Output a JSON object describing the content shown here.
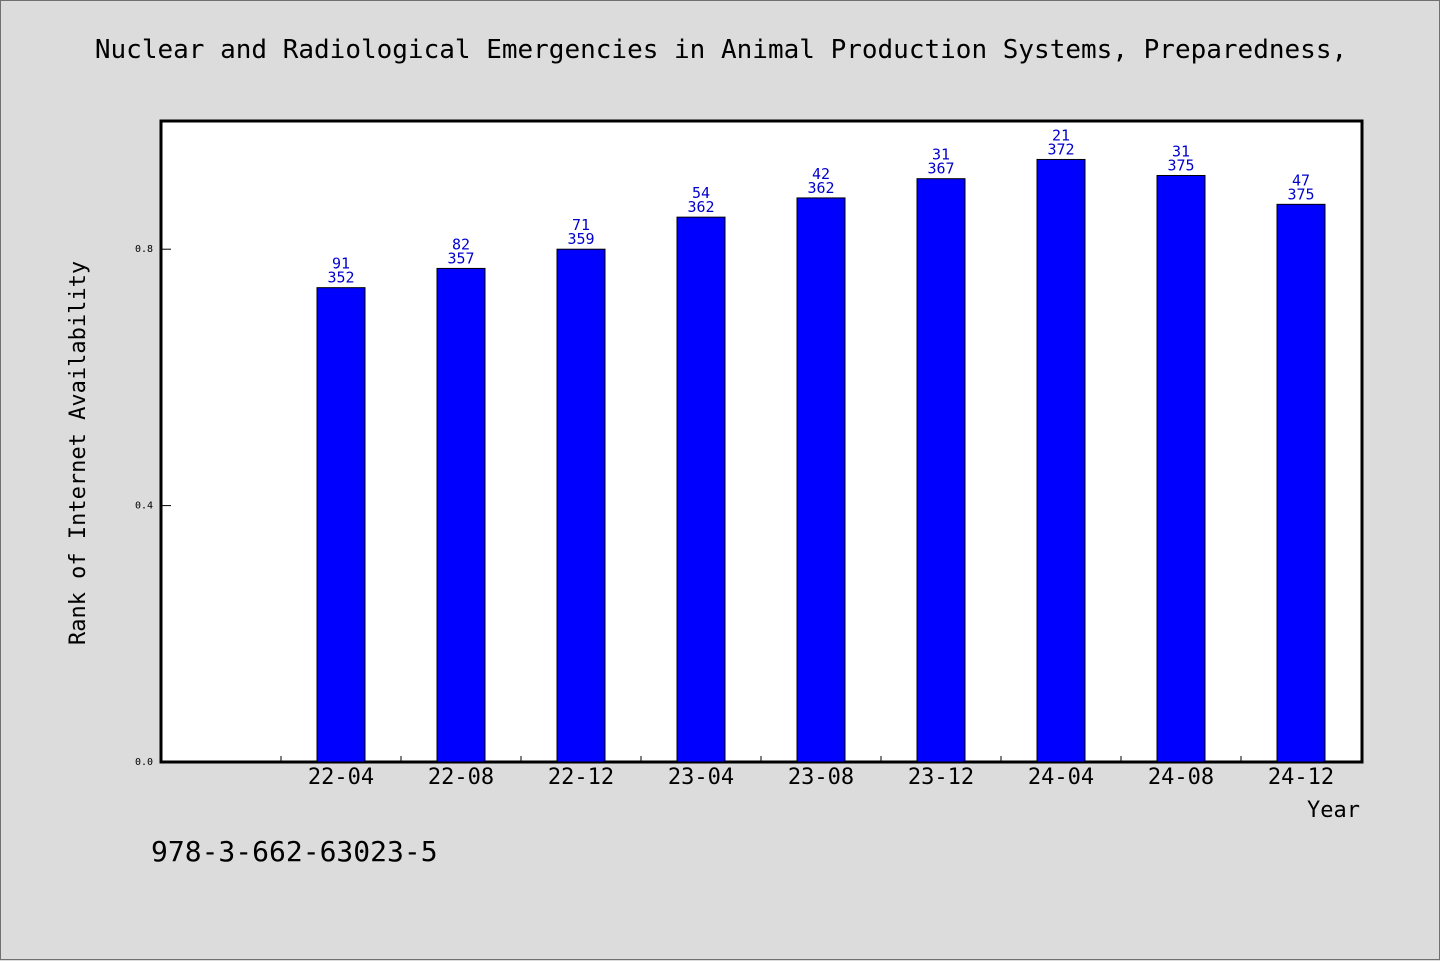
{
  "footer": {
    "isbn": "978-3-662-63023-5"
  },
  "chart_data": {
    "type": "bar",
    "title": "Nuclear and Radiological Emergencies in Animal Production Systems, Preparedness,",
    "xlabel": "Year",
    "ylabel": "Rank of Internet Availability",
    "ylim": [
      0,
      1.0
    ],
    "yticks": [
      "0.0",
      "0.4",
      "0.8"
    ],
    "categories": [
      "22-04",
      "22-08",
      "22-12",
      "23-04",
      "23-08",
      "23-12",
      "24-04",
      "24-08",
      "24-12"
    ],
    "series": [
      {
        "values": [
          0.74,
          0.77,
          0.8,
          0.85,
          0.88,
          0.91,
          0.94,
          0.915,
          0.87
        ],
        "label_top": [
          "91",
          "82",
          "71",
          "54",
          "42",
          "31",
          "21",
          "31",
          "47"
        ],
        "label_bottom": [
          "352",
          "357",
          "359",
          "362",
          "362",
          "367",
          "372",
          "375",
          "375"
        ]
      }
    ],
    "bar_color": "#0000ff",
    "label_color": "#0000cc",
    "grid": false
  }
}
